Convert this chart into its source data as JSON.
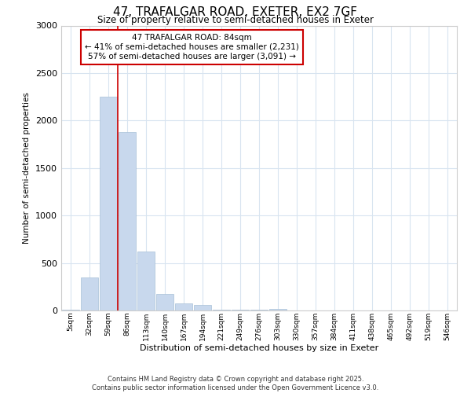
{
  "title1": "47, TRAFALGAR ROAD, EXETER, EX2 7GF",
  "title2": "Size of property relative to semi-detached houses in Exeter",
  "xlabel": "Distribution of semi-detached houses by size in Exeter",
  "ylabel": "Number of semi-detached properties",
  "bar_color": "#c8d8ed",
  "bar_edge_color": "#a8c0d8",
  "background_color": "#ffffff",
  "grid_color": "#d8e4f0",
  "categories": [
    "5sqm",
    "32sqm",
    "59sqm",
    "86sqm",
    "113sqm",
    "140sqm",
    "167sqm",
    "194sqm",
    "221sqm",
    "249sqm",
    "276sqm",
    "303sqm",
    "330sqm",
    "357sqm",
    "384sqm",
    "411sqm",
    "438sqm",
    "465sqm",
    "492sqm",
    "519sqm",
    "546sqm"
  ],
  "values": [
    10,
    350,
    2250,
    1880,
    620,
    170,
    75,
    55,
    10,
    10,
    5,
    20,
    0,
    0,
    0,
    0,
    0,
    0,
    0,
    0,
    0
  ],
  "ylim": [
    0,
    3000
  ],
  "yticks": [
    0,
    500,
    1000,
    1500,
    2000,
    2500,
    3000
  ],
  "red_line_index": 3,
  "property_line_color": "#cc0000",
  "annotation_title": "47 TRAFALGAR ROAD: 84sqm",
  "annotation_line1": "← 41% of semi-detached houses are smaller (2,231)",
  "annotation_line2": "57% of semi-detached houses are larger (3,091) →",
  "annotation_box_color": "#cc0000",
  "footer1": "Contains HM Land Registry data © Crown copyright and database right 2025.",
  "footer2": "Contains public sector information licensed under the Open Government Licence v3.0."
}
